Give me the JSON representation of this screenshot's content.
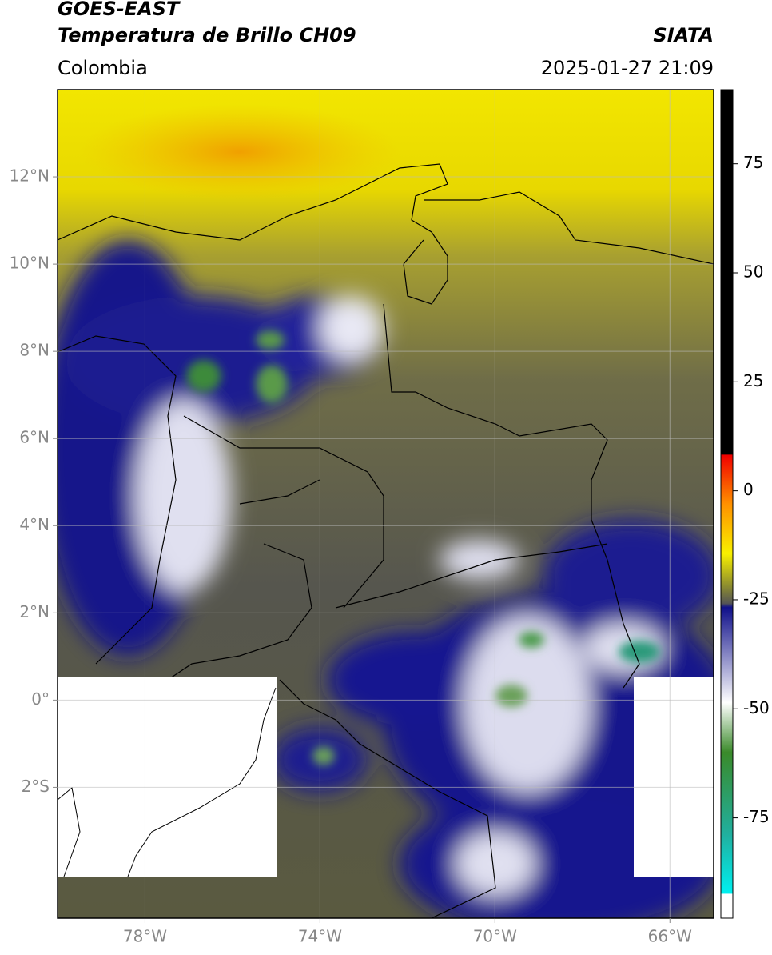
{
  "header": {
    "title_line1": "GOES-EAST",
    "title_line2": "Temperatura de Brillo CH09",
    "region": "Colombia",
    "agency": "SIATA",
    "datetime": "2025-01-27 21:09"
  },
  "map": {
    "lon_range": [
      -80,
      -65
    ],
    "lat_range": [
      -5,
      14
    ],
    "lon_ticks": [
      {
        "value": -78,
        "label": "78°W"
      },
      {
        "value": -74,
        "label": "74°W"
      },
      {
        "value": -70,
        "label": "70°W"
      },
      {
        "value": -66,
        "label": "66°W"
      }
    ],
    "lat_ticks": [
      {
        "value": 12,
        "label": "12°N"
      },
      {
        "value": 10,
        "label": "10°N"
      },
      {
        "value": 8,
        "label": "8°N"
      },
      {
        "value": 6,
        "label": "6°N"
      },
      {
        "value": 4,
        "label": "4°N"
      },
      {
        "value": 2,
        "label": "2°N"
      },
      {
        "value": 0,
        "label": "0°"
      },
      {
        "value": -2,
        "label": "2°S"
      }
    ]
  },
  "colorbar": {
    "range": [
      -98,
      92
    ],
    "ticks": [
      75,
      50,
      25,
      0,
      -25,
      -50,
      -75
    ]
  }
}
